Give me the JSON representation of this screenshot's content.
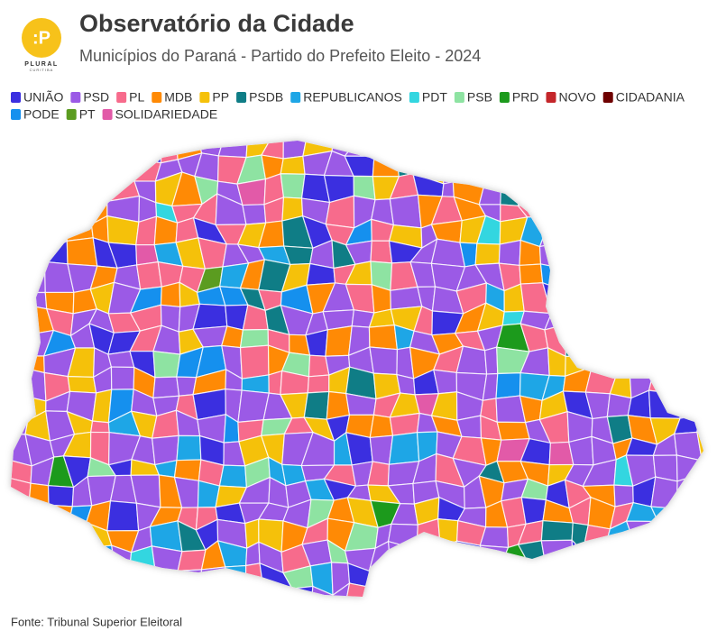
{
  "logo": {
    "mark": ":P",
    "name": "PLURAL",
    "city": "CURITIBA"
  },
  "title": "Observatório da Cidade",
  "subtitle": "Municípios do Paraná - Partido do Prefeito Eleito - 2024",
  "legend": [
    {
      "name": "UNIÃO",
      "color": "#3b2fe0"
    },
    {
      "name": "PSD",
      "color": "#9b5ae6"
    },
    {
      "name": "PL",
      "color": "#f76b8c"
    },
    {
      "name": "MDB",
      "color": "#ff8a05"
    },
    {
      "name": "PP",
      "color": "#f5c10a"
    },
    {
      "name": "PSDB",
      "color": "#0f7d86"
    },
    {
      "name": "REPUBLICANOS",
      "color": "#1ea6e6"
    },
    {
      "name": "PDT",
      "color": "#33d6e0"
    },
    {
      "name": "PSB",
      "color": "#8ee3a2"
    },
    {
      "name": "PRD",
      "color": "#1c9a1c"
    },
    {
      "name": "NOVO",
      "color": "#c4262a"
    },
    {
      "name": "CIDADANIA",
      "color": "#6e0000"
    },
    {
      "name": "PODE",
      "color": "#1590ee"
    },
    {
      "name": "PT",
      "color": "#5b9c20"
    },
    {
      "name": "SOLIDARIEDADE",
      "color": "#e25aa8"
    }
  ],
  "source": "Fonte: Tribunal Superior Eleitoral"
}
